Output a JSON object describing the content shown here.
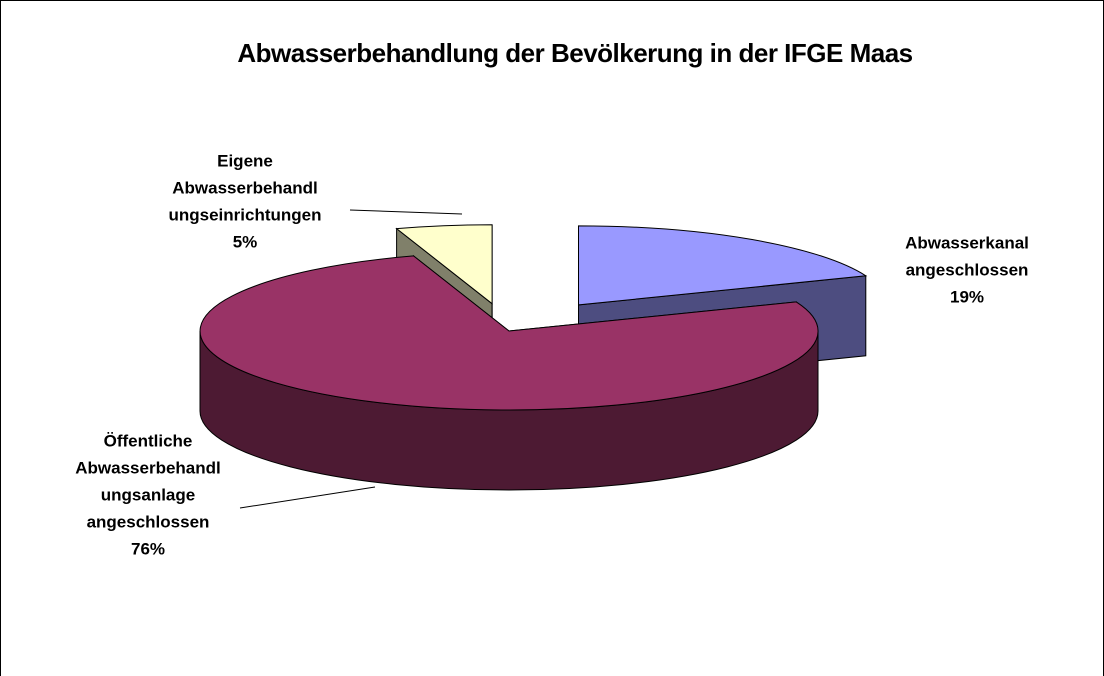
{
  "chart_data": {
    "type": "pie",
    "title": "Abwasserbehandlung der Bevölkerung in der IFGE Maas",
    "categories": [
      [
        "Abwasserkanal",
        "angeschlossen"
      ],
      [
        "Öffentliche",
        "Abwasserbehandl",
        "ungsanlage",
        "angeschlossen"
      ],
      [
        "Eigene",
        "Abwasserbehandl",
        "ungseinrichtungen"
      ]
    ],
    "values": [
      19,
      76,
      5
    ],
    "value_labels": [
      "19%",
      "76%",
      "5%"
    ],
    "colors": [
      "#9999ff",
      "#993366",
      "#ffffcc"
    ],
    "side_colors": [
      "#4d4d80",
      "#4d1a33",
      "#80806a"
    ]
  }
}
